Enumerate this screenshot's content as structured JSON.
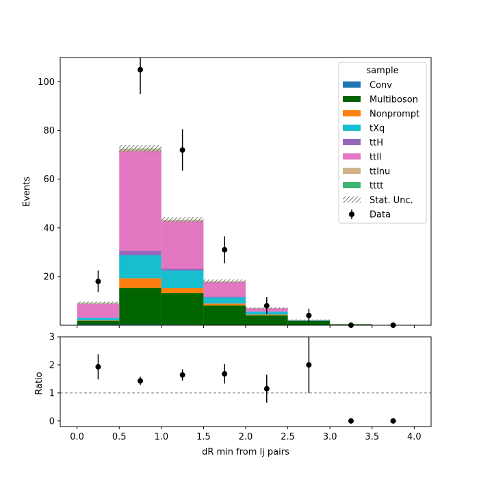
{
  "chart_data": {
    "type": "bar",
    "stacked": true,
    "x_bin_edges": [
      0.0,
      0.5,
      1.0,
      1.5,
      2.0,
      2.5,
      3.0,
      3.5,
      4.0
    ],
    "xlabel": "dR min from lj pairs",
    "xlim": [
      -0.2,
      4.2
    ],
    "xticks": [
      "0.0",
      "0.5",
      "1.0",
      "1.5",
      "2.0",
      "2.5",
      "3.0",
      "3.5",
      "4.0"
    ],
    "main": {
      "ylabel": "Events",
      "ylim": [
        0,
        110
      ],
      "yticks": [
        "20",
        "40",
        "60",
        "80",
        "100"
      ],
      "series": [
        {
          "name": "Conv",
          "color": "#1f77b4",
          "values": [
            0.3,
            0.3,
            0.2,
            0.1,
            0.05,
            0.0,
            0.0,
            0.0
          ]
        },
        {
          "name": "Multiboson",
          "color": "#006400",
          "values": [
            1.5,
            15.0,
            13.0,
            8.0,
            4.0,
            1.8,
            0.4,
            0.0
          ]
        },
        {
          "name": "Nonprompt",
          "color": "#ff7f0e",
          "values": [
            0.2,
            4.0,
            2.0,
            0.8,
            0.3,
            0.0,
            0.0,
            0.0
          ]
        },
        {
          "name": "tXq",
          "color": "#17becf",
          "values": [
            1.0,
            9.5,
            7.3,
            2.5,
            1.2,
            0.15,
            0.0,
            0.0
          ]
        },
        {
          "name": "ttH",
          "color": "#9467bd",
          "values": [
            0.2,
            1.7,
            0.7,
            0.3,
            0.15,
            0.0,
            0.0,
            0.0
          ]
        },
        {
          "name": "ttll",
          "color": "#e377c2",
          "values": [
            5.6,
            41.0,
            19.5,
            6.0,
            1.2,
            0.2,
            0.0,
            0.0
          ]
        },
        {
          "name": "ttlnu",
          "color": "#d2b48c",
          "values": [
            0.3,
            0.8,
            0.5,
            0.3,
            0.1,
            0.0,
            0.0,
            0.0
          ]
        },
        {
          "name": "tttt",
          "color": "#3cb371",
          "values": [
            0.1,
            0.2,
            0.1,
            0.0,
            0.0,
            0.0,
            0.0,
            0.0
          ]
        }
      ],
      "stat_unc": [
        0.5,
        1.5,
        1.1,
        0.8,
        0.4,
        0.2,
        0.1,
        0.0
      ],
      "data": {
        "name": "Data",
        "x": [
          0.25,
          0.75,
          1.25,
          1.75,
          2.25,
          2.75,
          3.25,
          3.75
        ],
        "y": [
          18,
          105,
          72,
          31,
          8,
          4,
          0,
          0
        ],
        "yerr": [
          4.5,
          10.0,
          8.5,
          5.5,
          3.5,
          2.8,
          0,
          0
        ]
      },
      "legend": {
        "title": "sample",
        "placement": "top-right",
        "stat_unc_label": "Stat. Unc."
      }
    },
    "ratio": {
      "ylabel": "Ratio",
      "ylim": [
        -0.2,
        3.0
      ],
      "yticks": [
        "0",
        "1",
        "2",
        "3"
      ],
      "reference_line": 1,
      "x": [
        0.25,
        0.75,
        1.25,
        1.75,
        2.25,
        2.75,
        3.25,
        3.75
      ],
      "y": [
        1.93,
        1.43,
        1.64,
        1.68,
        1.15,
        2.0,
        0.0,
        0.0
      ],
      "yerr": [
        0.45,
        0.15,
        0.2,
        0.35,
        0.5,
        1.0,
        0,
        0
      ]
    }
  }
}
